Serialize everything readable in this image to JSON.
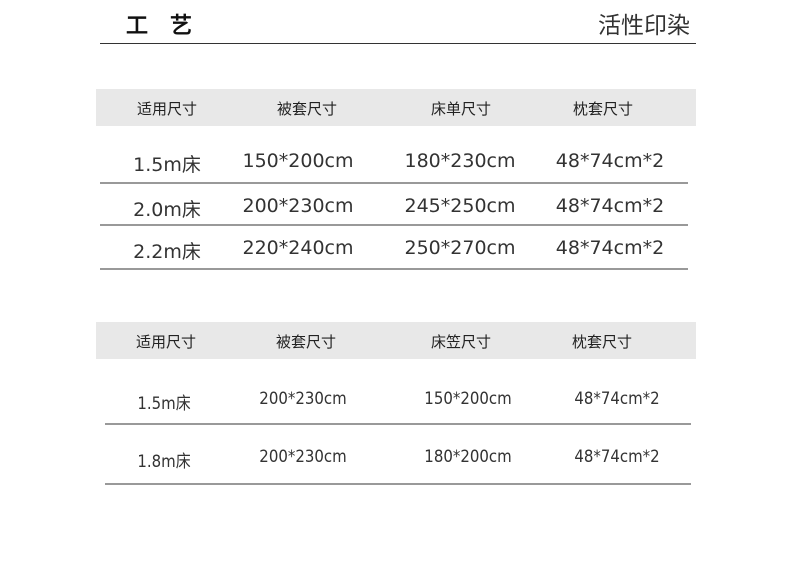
{
  "header": {
    "title": "工艺",
    "value": "活性印染"
  },
  "table1": {
    "headers": [
      "适用尺寸",
      "被套尺寸",
      "床单尺寸",
      "枕套尺寸"
    ],
    "rows": [
      [
        "1.5m床",
        "150*200cm",
        "180*230cm",
        "48*74cm*2"
      ],
      [
        "2.0m床",
        "200*230cm",
        "245*250cm",
        "48*74cm*2"
      ],
      [
        "2.2m床",
        "220*240cm",
        "250*270cm",
        "48*74cm*2"
      ]
    ]
  },
  "table2": {
    "headers": [
      "适用尺寸",
      "被套尺寸",
      "床笠尺寸",
      "枕套尺寸"
    ],
    "rows": [
      [
        "1.5m床",
        "200*230cm",
        "150*200cm",
        "48*74cm*2"
      ],
      [
        "1.8m床",
        "200*230cm",
        "180*200cm",
        "48*74cm*2"
      ]
    ]
  }
}
